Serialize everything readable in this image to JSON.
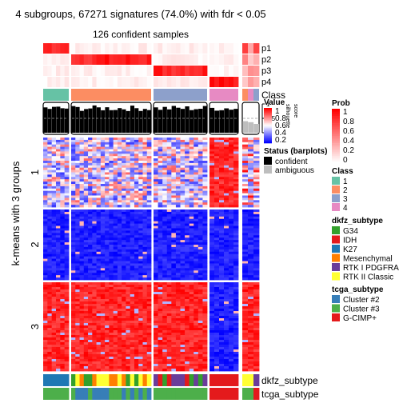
{
  "title": "4 subgroups, 67271 signatures (74.0%) with fdr < 0.05",
  "subtitle": "126 confident samples",
  "row_title": "k-means with 3 groups",
  "colors": {
    "high": "#ff0000",
    "mid": "#ffffff",
    "low": "#0000ff",
    "confident": "#000000",
    "ambiguous": "#bebebe"
  },
  "chart_data": {
    "type": "heatmap",
    "sample_groups": [
      {
        "group": "1",
        "samples": 6
      },
      {
        "group": "2",
        "samples": 19
      },
      {
        "group": "3",
        "samples": 12
      },
      {
        "group": "4",
        "samples": 6
      },
      {
        "group": "mixed",
        "samples": 3
      }
    ],
    "row_clusters": [
      {
        "label": "1",
        "rows": 30,
        "pattern": [
          "low-mid",
          "low-mid",
          "low-mid",
          "high",
          "mixed"
        ]
      },
      {
        "label": "2",
        "rows": 30,
        "pattern": [
          "low",
          "low",
          "low",
          "low",
          "low"
        ]
      },
      {
        "label": "3",
        "rows": 37,
        "pattern": [
          "high",
          "high",
          "high",
          "low",
          "high"
        ]
      }
    ],
    "top_annotations": {
      "prob_rows": [
        "p1",
        "p2",
        "p3",
        "p4"
      ],
      "class_label": "Class",
      "barplot_label": "Value",
      "barplot_ticks": [
        "0",
        "0.5",
        "1"
      ],
      "barplot_side_labels": [
        "silhouette",
        "score"
      ]
    },
    "bottom_annotations": [
      "dkfz_subtype",
      "tcga_subtype"
    ],
    "legends": [
      {
        "title": "Prob",
        "type": "gradient",
        "labels": [
          "1",
          "0.8",
          "0.6",
          "0.4",
          "0.2",
          "0"
        ],
        "colors": [
          "#ff0000",
          "#ffffff"
        ]
      },
      {
        "title": "Class",
        "type": "discrete",
        "items": [
          {
            "label": "1",
            "color": "#66c2a5"
          },
          {
            "label": "2",
            "color": "#fc8d62"
          },
          {
            "label": "3",
            "color": "#8da0cb"
          },
          {
            "label": "4",
            "color": "#e78ac3"
          }
        ]
      },
      {
        "title": "dkfz_subtype",
        "type": "discrete",
        "items": [
          {
            "label": "G34",
            "color": "#33a02c"
          },
          {
            "label": "IDH",
            "color": "#e31a1c"
          },
          {
            "label": "K27",
            "color": "#1f78b4"
          },
          {
            "label": "Mesenchymal",
            "color": "#ff7f00"
          },
          {
            "label": "RTK I PDGFRA",
            "color": "#6a3d9a"
          },
          {
            "label": "RTK II Classic",
            "color": "#ffff33"
          }
        ]
      },
      {
        "title": "tcga_subtype",
        "type": "discrete",
        "items": [
          {
            "label": "Cluster #2",
            "color": "#377eb8"
          },
          {
            "label": "Cluster #3",
            "color": "#4daf4a"
          },
          {
            "label": "G-CIMP+",
            "color": "#e41a1c"
          }
        ]
      },
      {
        "title": "Value",
        "type": "gradient",
        "labels": [
          "1",
          "0.8",
          "0.6",
          "0.4",
          "0.2"
        ],
        "colors": [
          "#ff0000",
          "#ffffff",
          "#0000ff"
        ]
      },
      {
        "title": "Status (barplots)",
        "type": "discrete",
        "items": [
          {
            "label": "confident",
            "color": "#000000"
          },
          {
            "label": "ambiguous",
            "color": "#bebebe"
          }
        ]
      }
    ]
  }
}
